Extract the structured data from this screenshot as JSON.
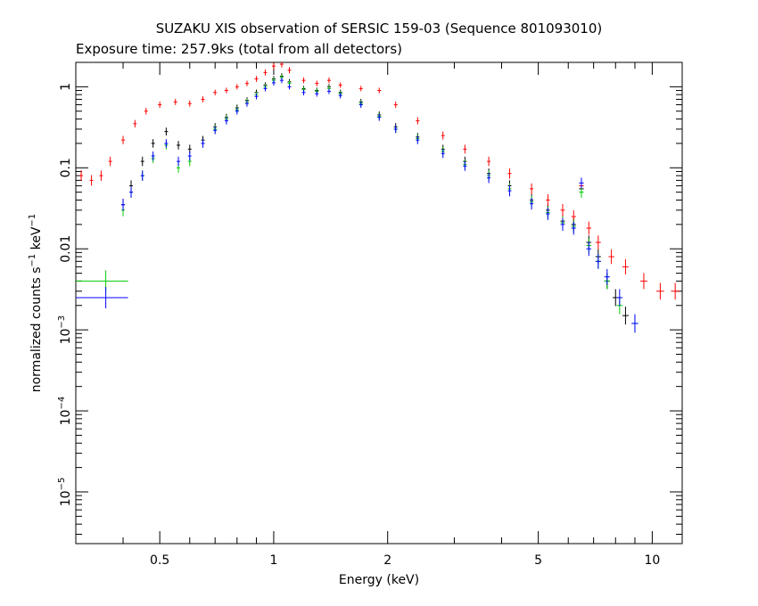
{
  "chart_data": {
    "type": "scatter",
    "title": "SUZAKU XIS observation of SERSIC 159-03 (Sequence 801093010)",
    "subtitle": "Exposure time: 257.9ks (total from all detectors)",
    "xlabel": "Energy (keV)",
    "ylabel": {
      "part1": "normalized counts s",
      "sup1": "−1",
      "part2": " keV",
      "sup2": "−1"
    },
    "x_scale": "log",
    "y_scale": "log",
    "xlim": [
      0.3,
      12
    ],
    "ylim": [
      2.3e-06,
      2.0
    ],
    "x_ticks": [
      {
        "value": 0.5,
        "label": "0.5"
      },
      {
        "value": 1,
        "label": "1"
      },
      {
        "value": 2,
        "label": "2"
      },
      {
        "value": 5,
        "label": "5"
      },
      {
        "value": 10,
        "label": "10"
      }
    ],
    "y_ticks": [
      {
        "value": 1,
        "label": "1",
        "exp": ""
      },
      {
        "value": 0.1,
        "label": "0.1",
        "exp": ""
      },
      {
        "value": 0.01,
        "label": "0.01",
        "exp": ""
      },
      {
        "value": 0.001,
        "label": "10",
        "exp": "−3"
      },
      {
        "value": 0.0001,
        "label": "10",
        "exp": "−4"
      },
      {
        "value": 1e-05,
        "label": "10",
        "exp": "−5"
      }
    ],
    "grid": false,
    "series": [
      {
        "color": "#000000",
        "points": [
          [
            0.4,
            0.035
          ],
          [
            0.42,
            0.06
          ],
          [
            0.45,
            0.12
          ],
          [
            0.48,
            0.2
          ],
          [
            0.52,
            0.28
          ],
          [
            0.56,
            0.19
          ],
          [
            0.6,
            0.17
          ],
          [
            0.65,
            0.22
          ],
          [
            0.7,
            0.32
          ],
          [
            0.75,
            0.42
          ],
          [
            0.8,
            0.55
          ],
          [
            0.85,
            0.68
          ],
          [
            0.9,
            0.85
          ],
          [
            0.95,
            1.05
          ],
          [
            1.0,
            1.25
          ],
          [
            1.05,
            1.35
          ],
          [
            1.1,
            1.15
          ],
          [
            1.2,
            0.95
          ],
          [
            1.3,
            0.9
          ],
          [
            1.4,
            1.0
          ],
          [
            1.5,
            0.85
          ],
          [
            1.7,
            0.65
          ],
          [
            1.9,
            0.45
          ],
          [
            2.1,
            0.32
          ],
          [
            2.4,
            0.24
          ],
          [
            2.8,
            0.17
          ],
          [
            3.2,
            0.12
          ],
          [
            3.7,
            0.085
          ],
          [
            4.2,
            0.06
          ],
          [
            4.8,
            0.04
          ],
          [
            5.3,
            0.03
          ],
          [
            5.8,
            0.022
          ],
          [
            6.2,
            0.02
          ],
          [
            6.5,
            0.055
          ],
          [
            6.8,
            0.012
          ],
          [
            7.2,
            0.008
          ],
          [
            7.6,
            0.004
          ],
          [
            8.0,
            0.0025
          ],
          [
            8.5,
            0.0015
          ]
        ]
      },
      {
        "color": "#ff0000",
        "points": [
          [
            0.31,
            0.08
          ],
          [
            0.33,
            0.07
          ],
          [
            0.35,
            0.08
          ],
          [
            0.37,
            0.12
          ],
          [
            0.4,
            0.22
          ],
          [
            0.43,
            0.35
          ],
          [
            0.46,
            0.5
          ],
          [
            0.5,
            0.6
          ],
          [
            0.55,
            0.65
          ],
          [
            0.6,
            0.62
          ],
          [
            0.65,
            0.7
          ],
          [
            0.7,
            0.85
          ],
          [
            0.75,
            0.9
          ],
          [
            0.8,
            1.0
          ],
          [
            0.85,
            1.1
          ],
          [
            0.9,
            1.25
          ],
          [
            0.95,
            1.5
          ],
          [
            1.0,
            1.8
          ],
          [
            1.05,
            1.9
          ],
          [
            1.1,
            1.6
          ],
          [
            1.2,
            1.2
          ],
          [
            1.3,
            1.1
          ],
          [
            1.4,
            1.2
          ],
          [
            1.5,
            1.05
          ],
          [
            1.7,
            0.95
          ],
          [
            1.9,
            0.9
          ],
          [
            2.1,
            0.6
          ],
          [
            2.4,
            0.38
          ],
          [
            2.8,
            0.25
          ],
          [
            3.2,
            0.17
          ],
          [
            3.7,
            0.12
          ],
          [
            4.2,
            0.085
          ],
          [
            4.8,
            0.055
          ],
          [
            5.3,
            0.04
          ],
          [
            5.8,
            0.03
          ],
          [
            6.2,
            0.025
          ],
          [
            6.5,
            0.06
          ],
          [
            6.8,
            0.018
          ],
          [
            7.2,
            0.012
          ],
          [
            7.8,
            0.008
          ],
          [
            8.5,
            0.006
          ],
          [
            9.5,
            0.004
          ],
          [
            10.5,
            0.003
          ],
          [
            11.5,
            0.003
          ]
        ]
      },
      {
        "color": "#00cc00",
        "points": [
          [
            0.4,
            0.03
          ],
          [
            0.42,
            0.05
          ],
          [
            0.45,
            0.08
          ],
          [
            0.48,
            0.13
          ],
          [
            0.52,
            0.19
          ],
          [
            0.56,
            0.1
          ],
          [
            0.6,
            0.12
          ],
          [
            0.65,
            0.2
          ],
          [
            0.7,
            0.3
          ],
          [
            0.75,
            0.4
          ],
          [
            0.8,
            0.52
          ],
          [
            0.85,
            0.65
          ],
          [
            0.9,
            0.8
          ],
          [
            0.95,
            1.0
          ],
          [
            1.0,
            1.2
          ],
          [
            1.05,
            1.3
          ],
          [
            1.1,
            1.1
          ],
          [
            1.2,
            0.92
          ],
          [
            1.3,
            0.88
          ],
          [
            1.4,
            0.95
          ],
          [
            1.5,
            0.82
          ],
          [
            1.7,
            0.62
          ],
          [
            1.9,
            0.43
          ],
          [
            2.1,
            0.3
          ],
          [
            2.4,
            0.23
          ],
          [
            2.8,
            0.16
          ],
          [
            3.2,
            0.11
          ],
          [
            3.7,
            0.08
          ],
          [
            4.2,
            0.055
          ],
          [
            4.8,
            0.038
          ],
          [
            5.3,
            0.028
          ],
          [
            5.8,
            0.021
          ],
          [
            6.2,
            0.019
          ],
          [
            6.5,
            0.05
          ],
          [
            6.8,
            0.011
          ],
          [
            7.2,
            0.007
          ],
          [
            7.6,
            0.004
          ],
          [
            8.2,
            0.002
          ],
          [
            9.0,
            0.0012
          ]
        ]
      },
      {
        "color": "#0000ff",
        "points": [
          [
            0.4,
            0.035
          ],
          [
            0.42,
            0.05
          ],
          [
            0.45,
            0.08
          ],
          [
            0.48,
            0.14
          ],
          [
            0.52,
            0.2
          ],
          [
            0.56,
            0.12
          ],
          [
            0.6,
            0.14
          ],
          [
            0.65,
            0.2
          ],
          [
            0.7,
            0.29
          ],
          [
            0.75,
            0.38
          ],
          [
            0.8,
            0.5
          ],
          [
            0.85,
            0.62
          ],
          [
            0.9,
            0.76
          ],
          [
            0.95,
            0.95
          ],
          [
            1.0,
            1.12
          ],
          [
            1.05,
            1.2
          ],
          [
            1.1,
            1.0
          ],
          [
            1.2,
            0.85
          ],
          [
            1.3,
            0.82
          ],
          [
            1.4,
            0.88
          ],
          [
            1.5,
            0.78
          ],
          [
            1.7,
            0.6
          ],
          [
            1.9,
            0.42
          ],
          [
            2.1,
            0.3
          ],
          [
            2.4,
            0.22
          ],
          [
            2.8,
            0.15
          ],
          [
            3.2,
            0.105
          ],
          [
            3.7,
            0.075
          ],
          [
            4.2,
            0.052
          ],
          [
            4.8,
            0.036
          ],
          [
            5.3,
            0.027
          ],
          [
            5.8,
            0.02
          ],
          [
            6.2,
            0.018
          ],
          [
            6.5,
            0.065
          ],
          [
            6.8,
            0.01
          ],
          [
            7.2,
            0.007
          ],
          [
            7.6,
            0.0045
          ],
          [
            8.2,
            0.0025
          ],
          [
            9.0,
            0.0012
          ]
        ]
      }
    ],
    "outlier_points": [
      {
        "color": "#00cc00",
        "x": 0.36,
        "y": 0.004
      },
      {
        "color": "#0000ff",
        "x": 0.36,
        "y": 0.0025
      }
    ]
  }
}
